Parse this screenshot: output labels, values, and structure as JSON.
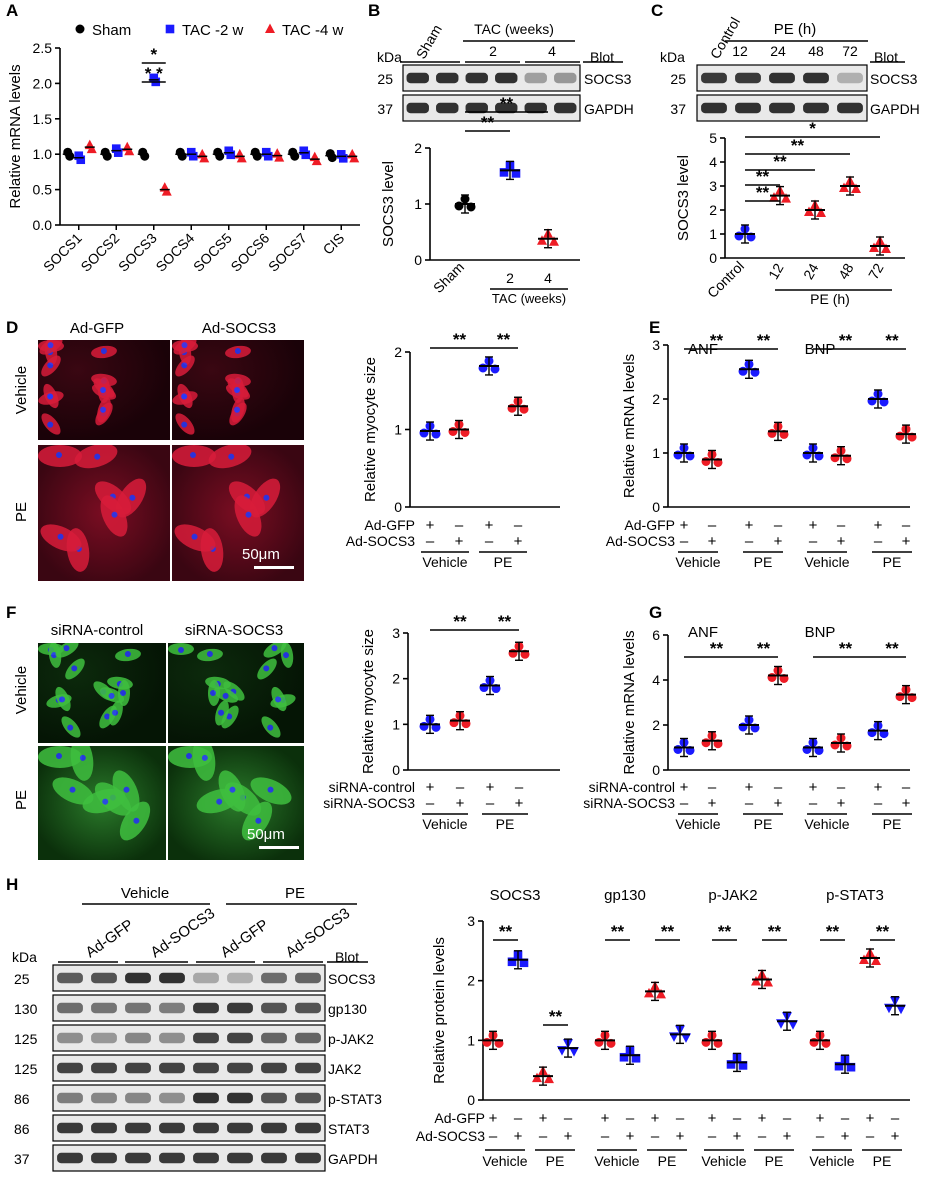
{
  "panels": {
    "A": {
      "letter": "A",
      "legend": [
        "Sham",
        "TAC -2 w",
        "TAC -4 w"
      ],
      "ylabel": "Relative mRNA levels",
      "yticks": [
        "0.0",
        "0.5",
        "1.0",
        "1.5",
        "2.0",
        "2.5"
      ],
      "categories": [
        "SOCS1",
        "SOCS2",
        "SOCS3",
        "SOCS4",
        "SOCS5",
        "SOCS6",
        "SOCS7",
        "CIS"
      ],
      "stars": [
        "*",
        "* *"
      ]
    },
    "B": {
      "letter": "B",
      "kda": "kDa",
      "blot_header": "Blot",
      "lanes_top": [
        "Sham",
        "TAC (weeks)",
        "2",
        "4"
      ],
      "blots": [
        {
          "kda": "25",
          "name": "SOCS3"
        },
        {
          "kda": "37",
          "name": "GAPDH"
        }
      ],
      "ylabel": "SOCS3 level",
      "yticks": [
        "0",
        "1",
        "2"
      ],
      "xticks": [
        "Sham",
        "2",
        "4"
      ],
      "xgroup": "TAC (weeks)",
      "stars": [
        "**",
        "**"
      ]
    },
    "C": {
      "letter": "C",
      "kda": "kDa",
      "blot_header": "Blot",
      "lanes_top": [
        "Control",
        "PE (h)",
        "12",
        "24",
        "48",
        "72"
      ],
      "blots": [
        {
          "kda": "25",
          "name": "SOCS3"
        },
        {
          "kda": "37",
          "name": "GAPDH"
        }
      ],
      "ylabel": "SOCS3 level",
      "yticks": [
        "0",
        "1",
        "2",
        "3",
        "4",
        "5"
      ],
      "xticks": [
        "Control",
        "12",
        "24",
        "48",
        "72"
      ],
      "xgroup": "PE (h)",
      "stars": [
        "*",
        "**",
        "**",
        "**",
        "**"
      ]
    },
    "D": {
      "letter": "D",
      "col_labels": [
        "Ad-GFP",
        "Ad-SOCS3"
      ],
      "row_labels": [
        "Vehicle",
        "PE"
      ],
      "scalebar": "50μm",
      "ylabel": "Relative myocyte size",
      "yticks": [
        "0",
        "1",
        "2"
      ],
      "rows": [
        {
          "label": "Ad-GFP",
          "signs": [
            "+",
            "–",
            "+",
            "–"
          ]
        },
        {
          "label": "Ad-SOCS3",
          "signs": [
            "–",
            "+",
            "–",
            "+"
          ]
        }
      ],
      "groups": [
        "Vehicle",
        "PE"
      ],
      "stars": [
        "**",
        "**"
      ]
    },
    "E": {
      "letter": "E",
      "genes": [
        "ANF",
        "BNP"
      ],
      "ylabel": "Relative mRNA levels",
      "yticks": [
        "0",
        "1",
        "2",
        "3"
      ],
      "rows": [
        {
          "label": "Ad-GFP",
          "signs": [
            "+",
            "–",
            "+",
            "–",
            "+",
            "–",
            "+",
            "–"
          ]
        },
        {
          "label": "Ad-SOCS3",
          "signs": [
            "–",
            "+",
            "–",
            "+",
            "–",
            "+",
            "–",
            "+"
          ]
        }
      ],
      "groups": [
        "Vehicle",
        "PE",
        "Vehicle",
        "PE"
      ],
      "stars": [
        "**",
        "**",
        "**",
        "**"
      ]
    },
    "F": {
      "letter": "F",
      "col_labels": [
        "siRNA-control",
        "siRNA-SOCS3"
      ],
      "row_labels": [
        "Vehicle",
        "PE"
      ],
      "scalebar": "50μm",
      "ylabel": "Relative myocyte size",
      "yticks": [
        "0",
        "1",
        "2",
        "3"
      ],
      "rows": [
        {
          "label": "siRNA-control",
          "signs": [
            "+",
            "–",
            "+",
            "–"
          ]
        },
        {
          "label": "siRNA-SOCS3",
          "signs": [
            "–",
            "+",
            "–",
            "+"
          ]
        }
      ],
      "groups": [
        "Vehicle",
        "PE"
      ],
      "stars": [
        "**",
        "**"
      ]
    },
    "G": {
      "letter": "G",
      "genes": [
        "ANF",
        "BNP"
      ],
      "ylabel": "Relative mRNA levels",
      "yticks": [
        "0",
        "2",
        "4",
        "6"
      ],
      "rows": [
        {
          "label": "siRNA-control",
          "signs": [
            "+",
            "–",
            "+",
            "–",
            "+",
            "–",
            "+",
            "–"
          ]
        },
        {
          "label": "siRNA-SOCS3",
          "signs": [
            "–",
            "+",
            "–",
            "+",
            "–",
            "+",
            "–",
            "+"
          ]
        }
      ],
      "groups": [
        "Vehicle",
        "PE",
        "Vehicle",
        "PE"
      ],
      "stars": [
        "**",
        "**",
        "**",
        "**"
      ]
    },
    "H": {
      "letter": "H",
      "kda": "kDa",
      "blot_header": "Blot",
      "groups_top": [
        "Vehicle",
        "PE"
      ],
      "lanes_top": [
        "Ad-GFP",
        "Ad-SOCS3",
        "Ad-GFP",
        "Ad-SOCS3"
      ],
      "blots": [
        {
          "kda": "25",
          "name": "SOCS3"
        },
        {
          "kda": "130",
          "name": "gp130"
        },
        {
          "kda": "125",
          "name": "p-JAK2"
        },
        {
          "kda": "125",
          "name": "JAK2"
        },
        {
          "kda": "86",
          "name": "p-STAT3"
        },
        {
          "kda": "86",
          "name": "STAT3"
        },
        {
          "kda": "37",
          "name": "GAPDH"
        }
      ],
      "proteins": [
        "SOCS3",
        "gp130",
        "p-JAK2",
        "p-STAT3"
      ],
      "ylabel": "Relative protein levels",
      "yticks": [
        "0",
        "1",
        "2",
        "3"
      ],
      "rows": [
        {
          "label": "Ad-GFP",
          "signs": [
            "+",
            "–",
            "+",
            "–"
          ]
        },
        {
          "label": "Ad-SOCS3",
          "signs": [
            "–",
            "+",
            "–",
            "+"
          ]
        }
      ],
      "groups": [
        "Vehicle",
        "PE"
      ],
      "stars": [
        "**",
        "**"
      ]
    }
  },
  "colors": {
    "sham": "#000000",
    "tac2": "#1a1aff",
    "tac4": "#ee1c25",
    "red": "#ee1c25",
    "blue": "#1a1aff"
  },
  "chart_data": [
    {
      "panel": "A",
      "type": "scatter",
      "ylim": [
        0,
        2.5
      ],
      "categories": [
        "SOCS1",
        "SOCS2",
        "SOCS3",
        "SOCS4",
        "SOCS5",
        "SOCS6",
        "SOCS7",
        "CIS"
      ],
      "series": [
        {
          "name": "Sham",
          "values": [
            1.0,
            1.0,
            1.0,
            1.0,
            1.0,
            1.0,
            1.0,
            0.98
          ]
        },
        {
          "name": "TAC -2 w",
          "values": [
            0.95,
            1.05,
            2.05,
            1.0,
            1.02,
            1.0,
            1.02,
            0.97
          ]
        },
        {
          "name": "TAC -4 w",
          "values": [
            1.1,
            1.07,
            0.5,
            0.97,
            0.97,
            0.98,
            0.93,
            0.97
          ]
        }
      ]
    },
    {
      "panel": "B",
      "type": "scatter",
      "ylim": [
        0,
        2
      ],
      "categories": [
        "Sham",
        "2",
        "4"
      ],
      "values": [
        1.0,
        1.6,
        0.38
      ]
    },
    {
      "panel": "C",
      "type": "scatter",
      "ylim": [
        0,
        5
      ],
      "categories": [
        "Control",
        "12",
        "24",
        "48",
        "72"
      ],
      "values": [
        1.0,
        2.6,
        2.0,
        3.0,
        0.5
      ]
    },
    {
      "panel": "D",
      "type": "scatter",
      "ylim": [
        0,
        2
      ],
      "values": [
        0.98,
        1.0,
        1.82,
        1.3
      ]
    },
    {
      "panel": "E",
      "type": "scatter",
      "ylim": [
        0,
        3
      ],
      "series": [
        {
          "name": "ANF",
          "values": [
            1.0,
            0.88,
            2.55,
            1.4
          ]
        },
        {
          "name": "BNP",
          "values": [
            1.0,
            0.95,
            2.0,
            1.35
          ]
        }
      ]
    },
    {
      "panel": "F",
      "type": "scatter",
      "ylim": [
        0,
        3
      ],
      "values": [
        1.0,
        1.08,
        1.85,
        2.6
      ]
    },
    {
      "panel": "G",
      "type": "scatter",
      "ylim": [
        0,
        6
      ],
      "series": [
        {
          "name": "ANF",
          "values": [
            1.0,
            1.3,
            2.0,
            4.2
          ]
        },
        {
          "name": "BNP",
          "values": [
            1.0,
            1.2,
            1.75,
            3.35
          ]
        }
      ]
    },
    {
      "panel": "H",
      "type": "scatter",
      "ylim": [
        0,
        3
      ],
      "series": [
        {
          "name": "SOCS3",
          "values": [
            1.0,
            2.35,
            0.4,
            0.87
          ]
        },
        {
          "name": "gp130",
          "values": [
            1.0,
            0.75,
            1.82,
            1.1
          ]
        },
        {
          "name": "p-JAK2",
          "values": [
            1.0,
            0.63,
            2.02,
            1.32
          ]
        },
        {
          "name": "p-STAT3",
          "values": [
            1.0,
            0.6,
            2.38,
            1.58
          ]
        }
      ]
    }
  ]
}
